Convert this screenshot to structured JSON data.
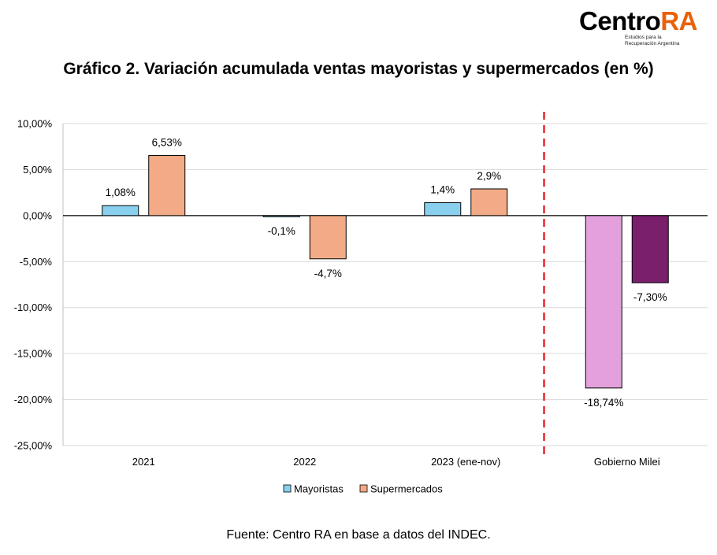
{
  "logo": {
    "text_main": "Centro",
    "text_accent": "RA",
    "subtitle_line1": "Estudios para la",
    "subtitle_line2": "Recuperación Argentina"
  },
  "source": "Fuente: Centro RA en base a datos del INDEC.",
  "colors": {
    "mayoristas": "#89cfee",
    "supermercados": "#f2ab86",
    "milei_mayoristas": "#e3a0dc",
    "milei_supermercados": "#7a1f6c",
    "divider": "#e8262a"
  },
  "chart_data": {
    "type": "bar",
    "title": "Gráfico 2. Variación acumulada ventas mayoristas y supermercados (en %)",
    "categories": [
      "2021",
      "2022",
      "2023 (ene-nov)",
      "Gobierno Milei"
    ],
    "series": [
      {
        "name": "Mayoristas",
        "values": [
          1.08,
          -0.1,
          1.4,
          -18.74
        ],
        "labels": [
          "1,08%",
          "-0,1%",
          "1,4%",
          "-18,74%"
        ]
      },
      {
        "name": "Supermercados",
        "values": [
          6.53,
          -4.7,
          2.9,
          -7.3
        ],
        "labels": [
          "6,53%",
          "-4,7%",
          "2,9%",
          "-7,30%"
        ]
      }
    ],
    "ylim": [
      -25,
      10
    ],
    "yticks": [
      10,
      5,
      0,
      -5,
      -10,
      -15,
      -20,
      -25
    ],
    "ytick_labels": [
      "10,00%",
      "5,00%",
      "0,00%",
      "-5,00%",
      "-10,00%",
      "-15,00%",
      "-20,00%",
      "-25,00%"
    ],
    "legend": [
      "Mayoristas",
      "Supermercados"
    ],
    "legend_position": "bottom",
    "annotations": [
      "dashed red vertical divider before Gobierno Milei"
    ],
    "grid": true
  }
}
